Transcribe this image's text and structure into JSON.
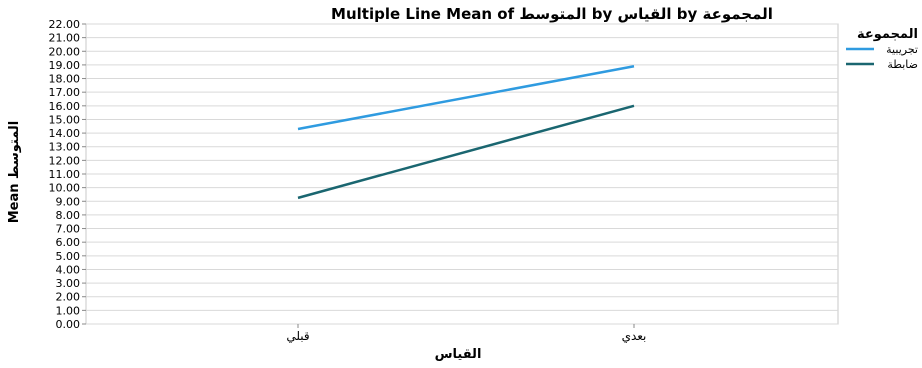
{
  "chart_data": {
    "type": "line",
    "title": "Multiple Line Mean of المتوسط by القياس by المجموعة",
    "xlabel": "القياس",
    "ylabel": "Mean المتوسط",
    "categories": [
      "قبلي",
      "بعدي"
    ],
    "ylim": [
      0,
      22
    ],
    "ytick_step": 1,
    "ytick_labels": [
      "0.00",
      "1.00",
      "2.00",
      "3.00",
      "4.00",
      "5.00",
      "6.00",
      "7.00",
      "8.00",
      "9.00",
      "10.00",
      "11.00",
      "12.00",
      "13.00",
      "14.00",
      "15.00",
      "16.00",
      "17.00",
      "18.00",
      "19.00",
      "20.00",
      "21.00",
      "22.00"
    ],
    "grid": true,
    "legend": {
      "title": "المجموعة",
      "placement": "top-right"
    },
    "series": [
      {
        "name": "تجريبية",
        "values": [
          14.3,
          18.9
        ],
        "color": "#2f9be0"
      },
      {
        "name": "ضابطة",
        "values": [
          9.25,
          16.0
        ],
        "color": "#1a6670"
      }
    ]
  }
}
